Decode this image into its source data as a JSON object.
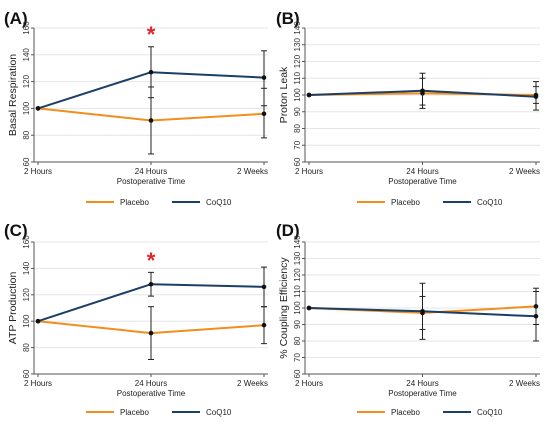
{
  "colors": {
    "placebo": "#F28E1C",
    "coq10": "#1B3F66",
    "star": "#E0252B",
    "grid": "#E6E6E6",
    "axis": "#555555"
  },
  "legend": {
    "placebo": "Placebo",
    "coq10": "CoQ10"
  },
  "chart_data": [
    {
      "panel_label": "(A)",
      "type": "line",
      "categories": [
        "2 Hours",
        "24 Hours",
        "2 Weeks"
      ],
      "xlabel": "Postoperative Time",
      "ylabel": "Basal Respiration",
      "ylim": [
        60,
        160
      ],
      "yticks": [
        60,
        80,
        100,
        120,
        140,
        160
      ],
      "grid": true,
      "legend_position": "bottom",
      "annotation": {
        "text": "*",
        "category": "24 Hours",
        "y": 157
      },
      "series": [
        {
          "name": "Placebo",
          "values": [
            100,
            91,
            96
          ],
          "err_low": [
            100,
            66,
            78
          ],
          "err_high": [
            100,
            116,
            115
          ]
        },
        {
          "name": "CoQ10",
          "values": [
            100,
            127,
            123
          ],
          "err_low": [
            100,
            108,
            102
          ],
          "err_high": [
            100,
            146,
            143
          ]
        }
      ]
    },
    {
      "panel_label": "(B)",
      "type": "line",
      "categories": [
        "2 Hours",
        "24 Hours",
        "2 Weeks"
      ],
      "xlabel": "Postoperative Time",
      "ylabel": "Proton Leak",
      "ylim": [
        60,
        140
      ],
      "yticks": [
        60,
        70,
        80,
        90,
        100,
        110,
        120,
        130,
        140
      ],
      "grid": true,
      "legend_position": "bottom",
      "series": [
        {
          "name": "Placebo",
          "values": [
            100,
            101,
            100
          ],
          "err_low": [
            100,
            92,
            95
          ],
          "err_high": [
            100,
            110,
            105
          ]
        },
        {
          "name": "CoQ10",
          "values": [
            100,
            102.5,
            99
          ],
          "err_low": [
            100,
            94,
            91
          ],
          "err_high": [
            100,
            113,
            108
          ]
        }
      ]
    },
    {
      "panel_label": "(C)",
      "type": "line",
      "categories": [
        "2 Hours",
        "24 Hours",
        "2 Weeks"
      ],
      "xlabel": "Postoperative Time",
      "ylabel": "ATP Production",
      "ylim": [
        60,
        160
      ],
      "yticks": [
        60,
        80,
        100,
        120,
        140,
        160
      ],
      "grid": true,
      "legend_position": "bottom",
      "annotation": {
        "text": "*",
        "category": "24 Hours",
        "y": 148
      },
      "series": [
        {
          "name": "Placebo",
          "values": [
            100,
            91,
            97
          ],
          "err_low": [
            100,
            71,
            83
          ],
          "err_high": [
            100,
            111,
            111
          ]
        },
        {
          "name": "CoQ10",
          "values": [
            100,
            128,
            126
          ],
          "err_low": [
            100,
            119,
            111
          ],
          "err_high": [
            100,
            137,
            141
          ]
        }
      ]
    },
    {
      "panel_label": "(D)",
      "type": "line",
      "categories": [
        "2 Hours",
        "24 Hours",
        "2 Weeks"
      ],
      "xlabel": "Postoperative Time",
      "ylabel": "% Coupling Efficiency",
      "ylim": [
        60,
        140
      ],
      "yticks": [
        60,
        70,
        80,
        90,
        100,
        110,
        120,
        130,
        140
      ],
      "grid": true,
      "legend_position": "bottom",
      "series": [
        {
          "name": "Placebo",
          "values": [
            100,
            97,
            101
          ],
          "err_low": [
            100,
            87,
            90
          ],
          "err_high": [
            100,
            107,
            112
          ]
        },
        {
          "name": "CoQ10",
          "values": [
            100,
            98,
            95
          ],
          "err_low": [
            100,
            81,
            80
          ],
          "err_high": [
            100,
            115,
            110
          ]
        }
      ]
    }
  ]
}
